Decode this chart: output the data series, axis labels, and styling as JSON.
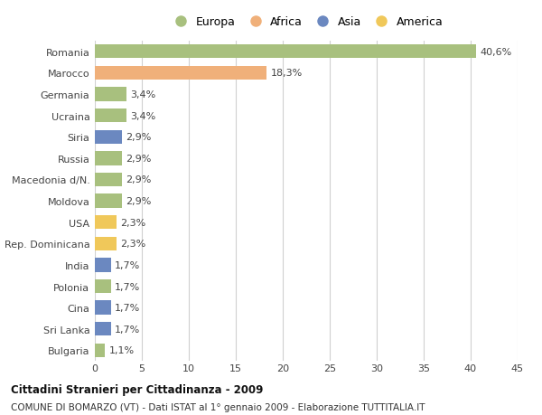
{
  "categories": [
    "Romania",
    "Marocco",
    "Germania",
    "Ucraina",
    "Siria",
    "Russia",
    "Macedonia d/N.",
    "Moldova",
    "USA",
    "Rep. Dominicana",
    "India",
    "Polonia",
    "Cina",
    "Sri Lanka",
    "Bulgaria"
  ],
  "values": [
    40.6,
    18.3,
    3.4,
    3.4,
    2.9,
    2.9,
    2.9,
    2.9,
    2.3,
    2.3,
    1.7,
    1.7,
    1.7,
    1.7,
    1.1
  ],
  "labels": [
    "40,6%",
    "18,3%",
    "3,4%",
    "3,4%",
    "2,9%",
    "2,9%",
    "2,9%",
    "2,9%",
    "2,3%",
    "2,3%",
    "1,7%",
    "1,7%",
    "1,7%",
    "1,7%",
    "1,1%"
  ],
  "colors": [
    "#a8c07e",
    "#f0b07a",
    "#a8c07e",
    "#a8c07e",
    "#6b88c0",
    "#a8c07e",
    "#a8c07e",
    "#a8c07e",
    "#f0c85a",
    "#f0c85a",
    "#6b88c0",
    "#a8c07e",
    "#6b88c0",
    "#6b88c0",
    "#a8c07e"
  ],
  "legend_labels": [
    "Europa",
    "Africa",
    "Asia",
    "America"
  ],
  "legend_colors": [
    "#a8c07e",
    "#f0b07a",
    "#6b88c0",
    "#f0c85a"
  ],
  "xlim": [
    0,
    45
  ],
  "xticks": [
    0,
    5,
    10,
    15,
    20,
    25,
    30,
    35,
    40,
    45
  ],
  "title": "Cittadini Stranieri per Cittadinanza - 2009",
  "subtitle": "COMUNE DI BOMARZO (VT) - Dati ISTAT al 1° gennaio 2009 - Elaborazione TUTTITALIA.IT",
  "bg_color": "#ffffff",
  "grid_color": "#d0d0d0",
  "bar_height": 0.65,
  "label_fontsize": 8,
  "ytick_fontsize": 8,
  "xtick_fontsize": 8
}
